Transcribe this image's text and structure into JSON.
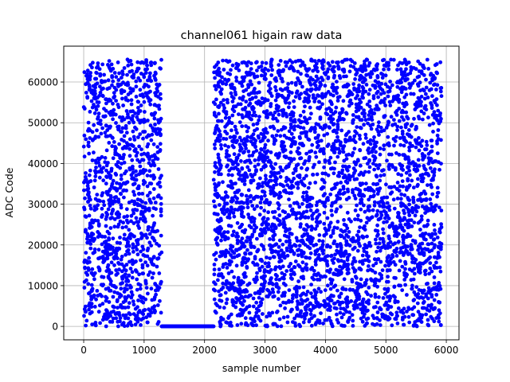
{
  "chart_data": {
    "type": "scatter",
    "title": "channel061 higain raw data",
    "xlabel": "sample number",
    "ylabel": "ADC Code",
    "xlim": [
      -330,
      6210
    ],
    "ylim": [
      -3300,
      68800
    ],
    "xticks": [
      0,
      1000,
      2000,
      3000,
      4000,
      5000,
      6000
    ],
    "yticks": [
      0,
      10000,
      20000,
      30000,
      40000,
      50000,
      60000
    ],
    "xtick_labels": [
      "0",
      "1000",
      "2000",
      "3000",
      "4000",
      "5000",
      "6000"
    ],
    "ytick_labels": [
      "0",
      "10000",
      "20000",
      "30000",
      "40000",
      "50000",
      "60000"
    ],
    "grid": true,
    "marker_color": "#0000ff",
    "series": [
      {
        "segments": [
          {
            "x_start": 0,
            "x_end": 1290,
            "n_points": 1200,
            "y_min": 0,
            "y_max": 65535,
            "distribution": "uniform-random"
          },
          {
            "x_start": 1290,
            "x_end": 2150,
            "n_points": 180,
            "y_min": 0,
            "y_max": 0,
            "distribution": "constant"
          },
          {
            "x_start": 2150,
            "x_end": 5920,
            "n_points": 3600,
            "y_min": 0,
            "y_max": 65535,
            "distribution": "uniform-random"
          }
        ]
      }
    ]
  }
}
